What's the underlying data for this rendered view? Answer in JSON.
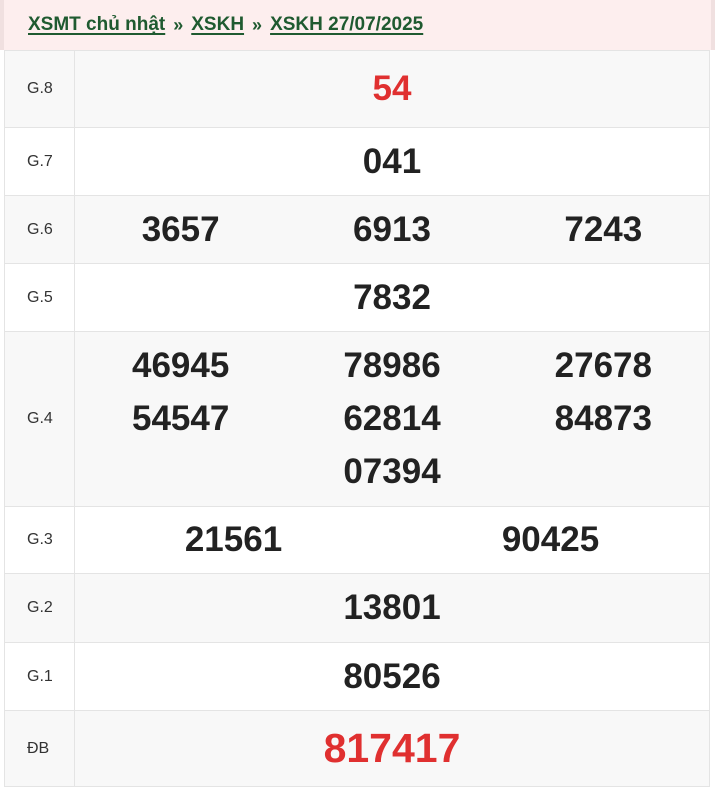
{
  "breadcrumb": [
    {
      "label": "XSMT chủ nhật"
    },
    {
      "label": "XSKH"
    },
    {
      "label": "XSKH 27/07/2025"
    }
  ],
  "separator": "»",
  "colors": {
    "accent_red": "#e03030",
    "link_green": "#1f5a30",
    "header_bg": "#fdeeee"
  },
  "prizes": [
    {
      "label": "G.8",
      "numbers": [
        "54"
      ]
    },
    {
      "label": "G.7",
      "numbers": [
        "041"
      ]
    },
    {
      "label": "G.6",
      "numbers": [
        "3657",
        "6913",
        "7243"
      ]
    },
    {
      "label": "G.5",
      "numbers": [
        "7832"
      ]
    },
    {
      "label": "G.4",
      "numbers": [
        "46945",
        "78986",
        "27678",
        "54547",
        "62814",
        "84873",
        "07394"
      ]
    },
    {
      "label": "G.3",
      "numbers": [
        "21561",
        "90425"
      ]
    },
    {
      "label": "G.2",
      "numbers": [
        "13801"
      ]
    },
    {
      "label": "G.1",
      "numbers": [
        "80526"
      ]
    },
    {
      "label": "ĐB",
      "numbers": [
        "817417"
      ]
    }
  ]
}
